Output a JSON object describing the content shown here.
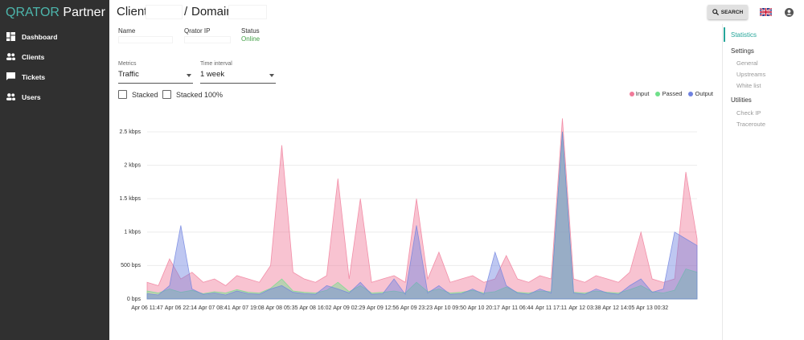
{
  "sidebar": {
    "brand": {
      "name": "QRATOR",
      "suffix": "Partner"
    },
    "nav": [
      "Dashboard",
      "Clients",
      "Tickets",
      "Users"
    ]
  },
  "header": {
    "client": "Client",
    "separator": "/",
    "domain": "Domain",
    "search": "SEARCH"
  },
  "info": {
    "name_label": "Name",
    "ip_label": "Qrator IP",
    "status_label": "Status",
    "status": "Online"
  },
  "controls": {
    "metrics_label": "Metrics",
    "metrics": "Traffic",
    "interval_label": "Time interval",
    "interval": "1 week",
    "stacked": "Stacked",
    "stacked_100": "Stacked 100%"
  },
  "right_nav": {
    "active": "Statistics",
    "settings": {
      "title": "Settings",
      "items": [
        "General",
        "Upstreams",
        "White list"
      ]
    },
    "utilities": {
      "title": "Utilities",
      "items": [
        "Check IP",
        "Traceroute"
      ]
    }
  },
  "chart_data": {
    "type": "area",
    "x": [
      "Apr 06 11:47",
      null,
      null,
      "Apr 06 22:14",
      null,
      null,
      "Apr 07 08:41",
      null,
      null,
      "Apr 07 19:08",
      null,
      null,
      "Apr 08 05:35",
      null,
      null,
      "Apr 08 16:02",
      null,
      null,
      "Apr 09 02:29",
      null,
      null,
      "Apr 09 12:56",
      null,
      null,
      "Apr 09 23:23",
      null,
      null,
      "Apr 10 09:50",
      null,
      null,
      "Apr 10 20:17",
      null,
      null,
      "Apr 11 06:44",
      null,
      null,
      "Apr 11 17:11",
      null,
      null,
      "Apr 12 03:38",
      null,
      null,
      "Apr 12 14:05",
      null,
      null,
      "Apr 13 00:32",
      null,
      null,
      null,
      null
    ],
    "series": [
      {
        "name": "Input",
        "color": "#f07a99",
        "values": [
          250,
          200,
          600,
          300,
          400,
          250,
          300,
          200,
          350,
          300,
          250,
          500,
          2300,
          400,
          300,
          250,
          350,
          1800,
          300,
          1500,
          250,
          300,
          350,
          250,
          1500,
          300,
          700,
          250,
          300,
          350,
          250,
          300,
          650,
          300,
          250,
          350,
          300,
          2700,
          300,
          250,
          350,
          300,
          250,
          400,
          1000,
          300,
          250,
          300,
          1900,
          900
        ]
      },
      {
        "name": "Passed",
        "color": "#6fe08a",
        "values": [
          120,
          90,
          150,
          100,
          130,
          80,
          110,
          90,
          140,
          100,
          90,
          160,
          300,
          120,
          100,
          90,
          130,
          250,
          110,
          200,
          90,
          100,
          120,
          90,
          250,
          110,
          150,
          90,
          100,
          130,
          90,
          110,
          180,
          100,
          90,
          120,
          110,
          2500,
          100,
          90,
          120,
          100,
          90,
          140,
          200,
          110,
          90,
          130,
          450,
          400
        ]
      },
      {
        "name": "Output",
        "color": "#6f82e0",
        "values": [
          80,
          60,
          200,
          1100,
          150,
          70,
          90,
          60,
          120,
          80,
          70,
          150,
          200,
          100,
          80,
          70,
          200,
          150,
          90,
          250,
          70,
          80,
          300,
          70,
          1100,
          90,
          200,
          70,
          80,
          150,
          70,
          700,
          200,
          90,
          70,
          150,
          90,
          2500,
          90,
          70,
          150,
          90,
          70,
          200,
          300,
          100,
          150,
          1000,
          900,
          800
        ]
      }
    ],
    "ylim": [
      0,
      2800
    ],
    "yticks": [
      {
        "value": 0,
        "label": "0 bps"
      },
      {
        "value": 500,
        "label": "500 bps"
      },
      {
        "value": 1000,
        "label": "1 kbps"
      },
      {
        "value": 1500,
        "label": "1.5 kbps"
      },
      {
        "value": 2000,
        "label": "2 kbps"
      },
      {
        "value": 2500,
        "label": "2.5 kbps"
      }
    ],
    "grid": true,
    "legend": "top-right"
  }
}
